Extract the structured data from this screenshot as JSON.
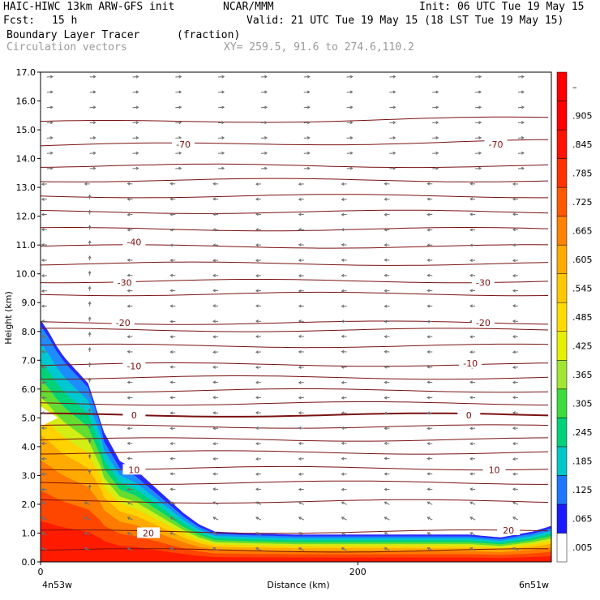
{
  "header": {
    "model": "HAIC-HIWC 13km ARW-GFS init",
    "org": "NCAR/MMM",
    "init": "Init: 06 UTC Tue 19 May 15",
    "fcst_label": "Fcst:",
    "fcst_value": "15 h",
    "valid": "Valid: 21 UTC Tue 19 May 15 (18 LST Tue 19 May 15)",
    "field_name": "Boundary Layer Tracer",
    "field_units": "(fraction)",
    "vector_label": "Circulation vectors",
    "xy_label": "XY= 259.5, 91.6 to 274.6,110.2"
  },
  "chart_data": {
    "type": "heatmap",
    "xlabel": "Distance (km)",
    "ylabel": "Height (km)",
    "xlim": [
      0,
      322
    ],
    "ylim": [
      0,
      17
    ],
    "x_ticks": [
      {
        "v": 0,
        "t": "0"
      },
      {
        "v": 200,
        "t": "200"
      }
    ],
    "x_end_labels": {
      "left": "4n53w",
      "right": "6n51w"
    },
    "y_ticks": [
      "0.0",
      "1.0",
      "2.0",
      "3.0",
      "4.0",
      "5.0",
      "6.0",
      "7.0",
      "8.0",
      "9.0",
      "10.0",
      "11.0",
      "12.0",
      "13.0",
      "14.0",
      "15.0",
      "16.0",
      "17.0"
    ],
    "colorbar": {
      "labels": [
        ".005",
        ".065",
        ".125",
        ".185",
        ".245",
        ".305",
        ".365",
        ".425",
        ".485",
        ".545",
        ".605",
        ".665",
        ".725",
        ".785",
        ".845",
        ".905",
        "–"
      ],
      "colors": [
        "#ffffff",
        "#1a1aff",
        "#1e78ff",
        "#00c8c8",
        "#00d27a",
        "#3cdc3c",
        "#a0e632",
        "#e6f000",
        "#ffdc00",
        "#ffc800",
        "#ffaa00",
        "#ff8200",
        "#ff5a00",
        "#ff3200",
        "#ff1400",
        "#ff0000",
        "#ff0000"
      ]
    },
    "tracer_profile": {
      "x_km": [
        0,
        5,
        10,
        15,
        20,
        30,
        40,
        50,
        60,
        70,
        80,
        90,
        100,
        110,
        130,
        160,
        200,
        240,
        270,
        290,
        300,
        310,
        322
      ],
      "top_km": [
        8.4,
        8.0,
        7.5,
        7.1,
        6.8,
        6.2,
        4.5,
        3.5,
        3.2,
        2.7,
        2.2,
        1.7,
        1.3,
        1.05,
        1.0,
        0.95,
        0.95,
        0.95,
        0.95,
        0.85,
        0.95,
        1.05,
        1.25
      ]
    },
    "contour_labels": [
      {
        "text": "-70",
        "x": 90,
        "y": 14.5
      },
      {
        "text": "-70",
        "x": 287,
        "y": 14.5
      },
      {
        "text": "-40",
        "x": 59,
        "y": 11.1
      },
      {
        "text": "-30",
        "x": 53,
        "y": 9.7
      },
      {
        "text": "-30",
        "x": 279,
        "y": 9.7
      },
      {
        "text": "-20",
        "x": 52,
        "y": 8.3
      },
      {
        "text": "-20",
        "x": 279,
        "y": 8.3
      },
      {
        "text": "-10",
        "x": 59,
        "y": 6.8
      },
      {
        "text": "-10",
        "x": 271,
        "y": 6.9
      },
      {
        "text": "0",
        "x": 59,
        "y": 5.1
      },
      {
        "text": "0",
        "x": 270,
        "y": 5.1
      },
      {
        "text": "10",
        "x": 59,
        "y": 3.2
      },
      {
        "text": "10",
        "x": 286,
        "y": 3.2
      },
      {
        "text": "20",
        "x": 68,
        "y": 1.0
      },
      {
        "text": "20",
        "x": 295,
        "y": 1.1
      }
    ],
    "contour_levels_km": [
      0.4,
      1.05,
      2.1,
      2.75,
      3.25,
      3.8,
      4.25,
      4.7,
      5.1,
      5.5,
      5.95,
      6.4,
      6.85,
      7.5,
      8.05,
      8.3,
      9.3,
      9.75,
      10.35,
      10.95,
      11.55,
      12.15,
      12.7,
      13.25,
      13.75,
      14.45,
      15.25
    ]
  }
}
